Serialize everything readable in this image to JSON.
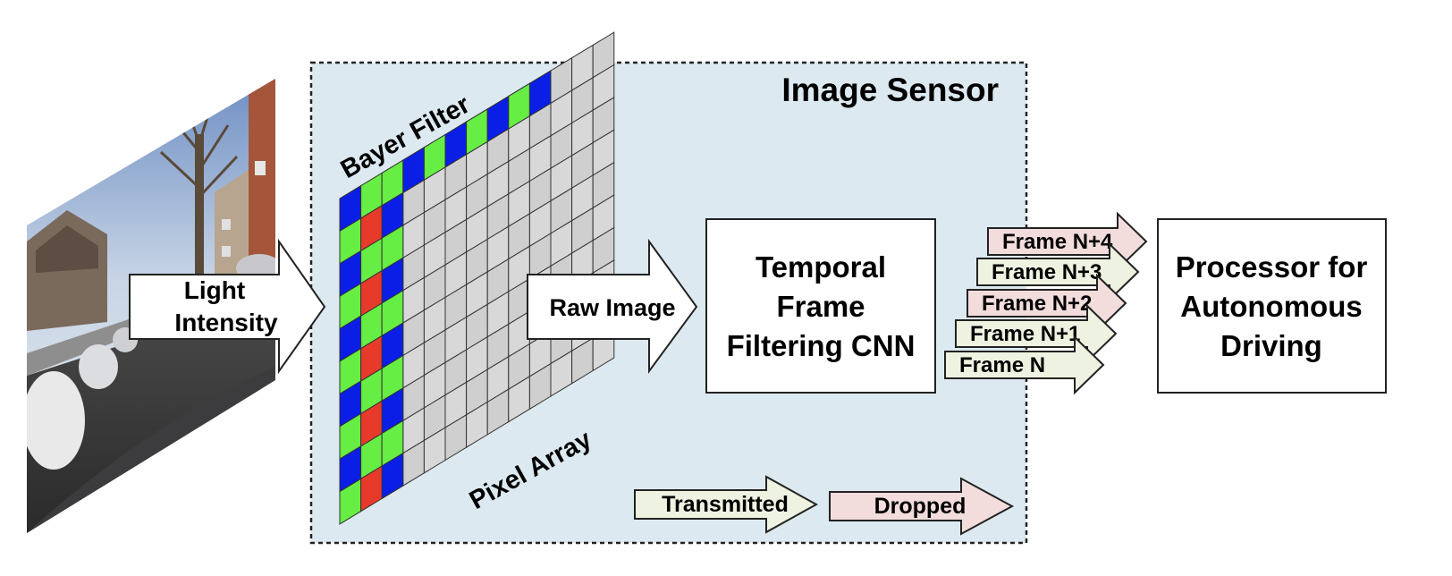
{
  "sensor": {
    "title": "Image Sensor"
  },
  "input": {
    "label_line1": "Light",
    "label_line2": "Intensity"
  },
  "filter": {
    "bayer_label": "Bayer Filter",
    "pixel_label": "Pixel Array"
  },
  "raw": {
    "label": "Raw Image"
  },
  "cnn": {
    "line1": "Temporal",
    "line2": "Frame",
    "line3": "Filtering CNN"
  },
  "frames": [
    {
      "label": "Frame N+4",
      "status": "dropped"
    },
    {
      "label": "Frame N+3",
      "status": "transmitted"
    },
    {
      "label": "Frame N+2",
      "status": "dropped"
    },
    {
      "label": "Frame N+1",
      "status": "transmitted"
    },
    {
      "label": "Frame N",
      "status": "transmitted"
    }
  ],
  "processor": {
    "line1": "Processor for",
    "line2": "Autonomous",
    "line3": "Driving"
  },
  "legend": {
    "transmitted": "Transmitted",
    "dropped": "Dropped"
  },
  "colors": {
    "sensor_bg": "#dde9f0",
    "title_blue": "#2f6db5",
    "transmitted_fill": "#eef2e0",
    "dropped_fill": "#f2dcdc",
    "bayer_green": "#66ee44",
    "bayer_blue": "#0a1ee6",
    "bayer_red": "#e83a2a",
    "pixel_gray": "#d4d4d4"
  }
}
